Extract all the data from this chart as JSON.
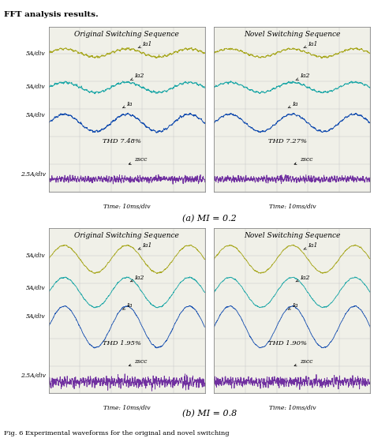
{
  "title_top": "FFT analysis results.",
  "subtitle_a": "(a) MI = 0.2",
  "subtitle_b": "(b) MI = 0.8",
  "caption": "Fig. 6 Experimental waveforms for the original and novel switching",
  "panel_titles": [
    "Original Switching Sequence",
    "Novel Switching Sequence"
  ],
  "thd_labels_a": [
    "THD 7.48%",
    "THD 7.27%"
  ],
  "thd_labels_b": [
    "THD 1.95%",
    "THD 1.90%"
  ],
  "ylabels": [
    "5A/div",
    "5A/div",
    "5A/div",
    "2.5A/div"
  ],
  "xlabel": "Time: 10ms/div",
  "signal_labels": [
    "Ia1",
    "Ia2",
    "Ia",
    "zscc"
  ],
  "colors": {
    "Ia1": "#a8a820",
    "Ia2": "#20a8a8",
    "Ia": "#1850b0",
    "zscc": "#7030a0",
    "grid": "#c8c8c8",
    "bg": "#f0f0e8",
    "border": "#888888"
  },
  "n_points": 800,
  "freq_main": 50,
  "t_span": 0.05,
  "offsets_a": [
    3.2,
    1.7,
    0.15,
    -2.3
  ],
  "offsets_b": [
    3.0,
    1.55,
    0.05,
    -2.35
  ],
  "amp_a": [
    0.18,
    0.22,
    0.38,
    0.0
  ],
  "amp_b": [
    0.6,
    0.65,
    0.9,
    0.0
  ],
  "noise_a": 0.018,
  "noise_b": 0.01,
  "ripple_freq": 600,
  "ripple_a": 0.025,
  "ripple_b": 0.012,
  "zscc_noise_a": 0.06,
  "zscc_noise_b": 0.1,
  "zscc_ripple_a": 0.04,
  "zscc_ripple_b": 0.06,
  "font_size_title": 6.5,
  "font_size_label": 5.5,
  "font_size_axis": 5.5,
  "font_size_thd": 6.0,
  "font_size_subtitle": 8,
  "font_size_caption": 6.0,
  "font_size_top_title": 7.5
}
